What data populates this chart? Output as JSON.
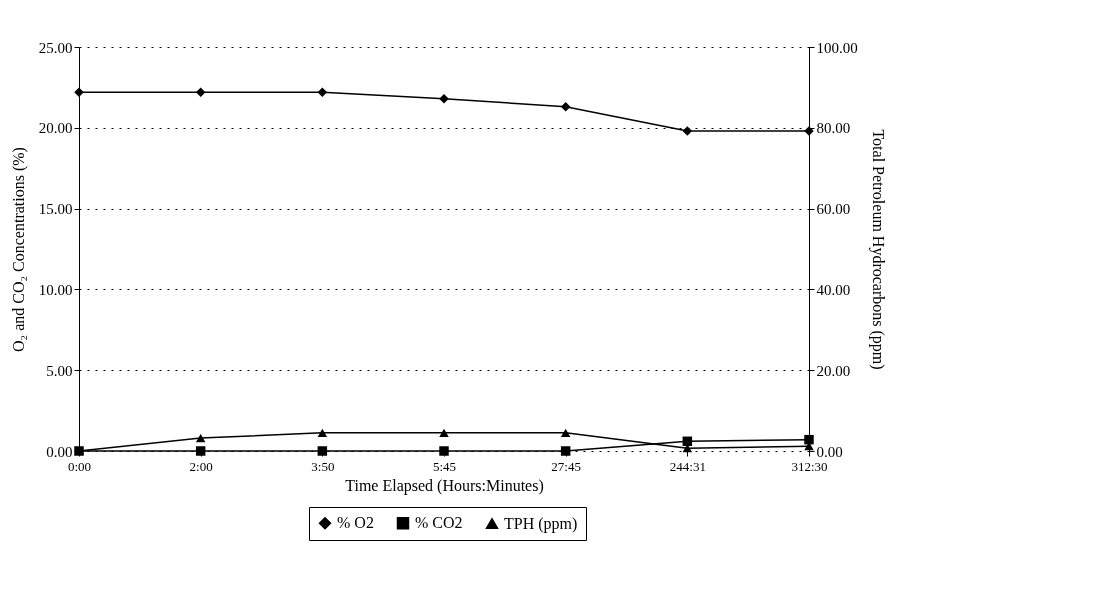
{
  "chart_data": {
    "type": "line",
    "xlabel": "Time Elapsed (Hours:Minutes)",
    "ylabel": "O₂ and CO₂ Concentrations (%)",
    "y2label": "Total Petroleum Hydrocarbons (ppm)",
    "categories": [
      "0:00",
      "2:00",
      "3:50",
      "5:45",
      "27:45",
      "244:31",
      "312:30"
    ],
    "series": [
      {
        "name": "% O2",
        "color": "#000000",
        "marker": "diamond",
        "values": [
          22.2,
          22.2,
          22.2,
          21.8,
          21.3,
          19.8,
          19.8
        ]
      },
      {
        "name": "% CO2",
        "color": "#000000",
        "marker": "square",
        "values": [
          0,
          0,
          0,
          0,
          0,
          0.6,
          0.7
        ]
      },
      {
        "name": "TPH (ppm)",
        "color": "#000000",
        "marker": "triangle",
        "axis": "y2",
        "values": [
          0,
          3.2,
          4.5,
          4.5,
          4.5,
          0.7,
          1.2
        ]
      }
    ],
    "ylim": [
      0,
      25
    ],
    "yticks": [
      {
        "value": 0,
        "label": "0.00"
      },
      {
        "value": 5,
        "label": "5.00"
      },
      {
        "value": 10,
        "label": "10.00"
      },
      {
        "value": 15,
        "label": "15.00"
      },
      {
        "value": 20,
        "label": "20.00"
      },
      {
        "value": 25,
        "label": "25.00"
      }
    ],
    "y2lim": [
      0,
      100
    ],
    "y2ticks": [
      {
        "value": 0,
        "label": "0.00"
      },
      {
        "value": 20,
        "label": "20.00"
      },
      {
        "value": 40,
        "label": "40.00"
      },
      {
        "value": 60,
        "label": "60.00"
      },
      {
        "value": 80,
        "label": "80.00"
      },
      {
        "value": 100,
        "label": "100.00"
      }
    ],
    "grid": "y",
    "legend": "bottom",
    "line_style": "solid"
  }
}
